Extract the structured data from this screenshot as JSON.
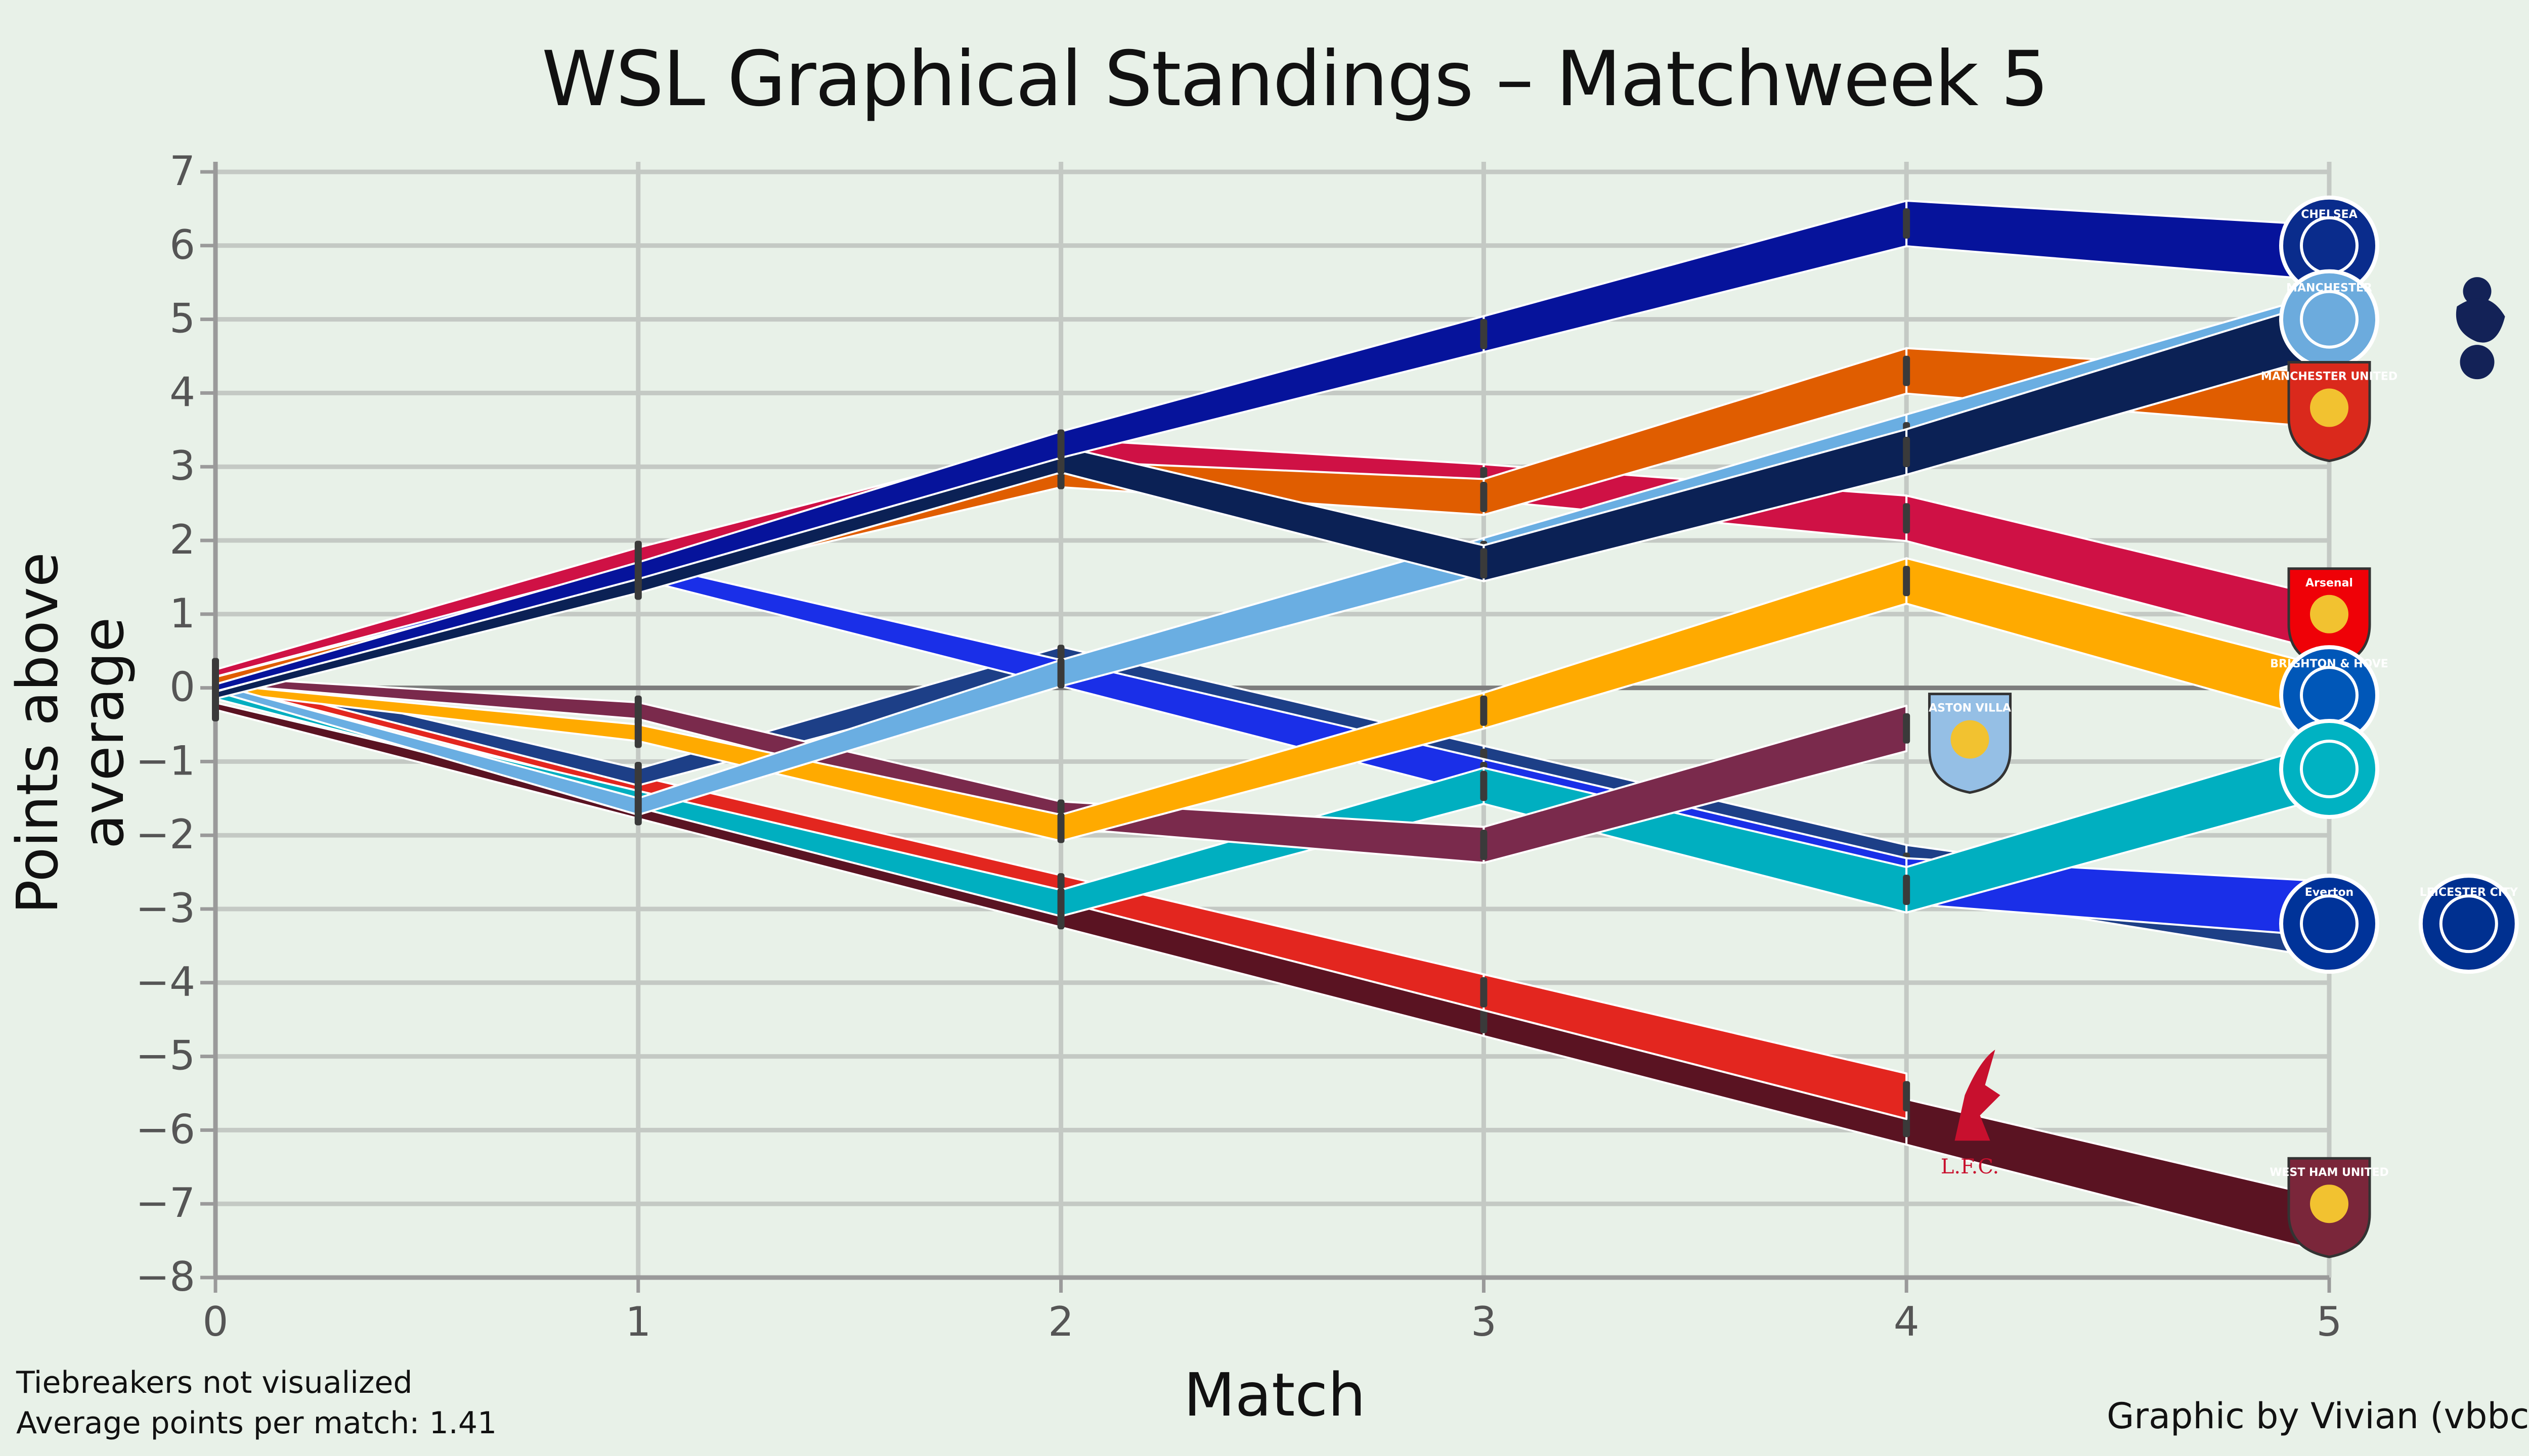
{
  "chart_data": {
    "type": "line",
    "title": "WSL Graphical Standings – Matchweek 5",
    "xlabel": "Match",
    "ylabel": "Points above average",
    "x": [
      0,
      1,
      2,
      3,
      4,
      5
    ],
    "xlim": [
      0,
      5
    ],
    "ylim": [
      -8,
      7
    ],
    "yticks": [
      7,
      6,
      5,
      4,
      3,
      2,
      1,
      0,
      -1,
      -2,
      -3,
      -4,
      -5,
      -6,
      -7,
      -8
    ],
    "ytick_labels": [
      "7",
      "6",
      "5",
      "4",
      "3",
      "2",
      "1",
      "0",
      "−1",
      "−2",
      "−3",
      "−4",
      "−5",
      "−6",
      "−7",
      "−8"
    ],
    "xticks": [
      0,
      1,
      2,
      3,
      4,
      5
    ],
    "grid": true,
    "series": [
      {
        "color": "#5a1322",
        "team_icon": "west-ham-crest-icon",
        "values": [
          -0.25,
          -1.66,
          -3.07,
          -4.48,
          -5.89,
          -7.3
        ]
      },
      {
        "color": "#e3261f",
        "team_icon": "liverpool-crest-icon",
        "values": [
          0.1,
          -1.31,
          -2.72,
          -4.13,
          -5.54,
          null
        ]
      },
      {
        "color": "#1d3f87",
        "team_icon": "leicester-crest-icon",
        "values": [
          0.2,
          -1.21,
          0.38,
          -1.03,
          -2.44,
          -3.3
        ]
      },
      {
        "color": "#1a2fe8",
        "team_icon": "everton-crest-icon",
        "values": [
          0.2,
          1.59,
          0.2,
          -1.21,
          -2.62,
          -3.0
        ]
      },
      {
        "color": "#00afc0",
        "team_icon": "london-city-crest-icon",
        "values": [
          -0.1,
          -1.51,
          -2.92,
          -1.33,
          -2.74,
          -1.1
        ]
      },
      {
        "color": "#7a2a4c",
        "team_icon": "aston-villa-crest-icon",
        "values": [
          0.1,
          -0.31,
          -1.72,
          -2.13,
          -0.55,
          null
        ]
      },
      {
        "color": "#ffaa00",
        "team_icon": "brighton-crest-icon",
        "values": [
          0.0,
          -0.61,
          -1.9,
          -0.31,
          1.45,
          -0.1
        ]
      },
      {
        "color": "#cf1145",
        "team_icon": "arsenal-crest-icon",
        "values": [
          0.2,
          1.79,
          3.2,
          2.79,
          2.3,
          0.85
        ]
      },
      {
        "color": "#e05d00",
        "team_icon": "manchester-united-crest-icon",
        "values": [
          0.1,
          1.49,
          2.9,
          2.59,
          4.3,
          3.9
        ]
      },
      {
        "color": "#6aaee2",
        "team_icon": "manchester-city-crest-icon",
        "values": [
          0.0,
          -1.61,
          0.2,
          1.79,
          3.4,
          5.0
        ]
      },
      {
        "color": "#0b2155",
        "team_icon": "tottenham-crest-icon",
        "values": [
          -0.1,
          1.4,
          3.1,
          1.69,
          3.2,
          4.9
        ]
      },
      {
        "color": "#06139b",
        "team_icon": "chelsea-crest-icon",
        "values": [
          0.0,
          1.59,
          3.3,
          4.8,
          6.3,
          5.9
        ]
      }
    ],
    "crests": [
      {
        "icon": "chelsea-crest-icon",
        "text": "CHELSEA",
        "color": "#0a2c8c",
        "x": 5,
        "y": 6.0
      },
      {
        "icon": "manchester-city-crest-icon",
        "text": "MANCHESTER",
        "color": "#6cabdd",
        "x": 5,
        "y": 5.0
      },
      {
        "icon": "tottenham-crest-icon",
        "text": "",
        "color": "#132257",
        "x": 5.35,
        "y": 4.9
      },
      {
        "icon": "manchester-united-crest-icon",
        "text": "MANCHESTER UNITED",
        "color": "#da291c",
        "x": 5,
        "y": 3.8
      },
      {
        "icon": "arsenal-crest-icon",
        "text": "Arsenal",
        "color": "#ef0107",
        "x": 5,
        "y": 1.0
      },
      {
        "icon": "brighton-crest-icon",
        "text": "BRIGHTON & HOVE",
        "color": "#0057b8",
        "x": 5,
        "y": -0.1
      },
      {
        "icon": "london-city-crest-icon",
        "text": "",
        "color": "#00b2c2",
        "x": 5,
        "y": -1.1
      },
      {
        "icon": "everton-crest-icon",
        "text": "Everton",
        "color": "#003399",
        "x": 5,
        "y": -3.2
      },
      {
        "icon": "leicester-crest-icon",
        "text": "LEICESTER CITY",
        "color": "#003090",
        "x": 5.33,
        "y": -3.2
      },
      {
        "icon": "west-ham-crest-icon",
        "text": "WEST HAM UNITED",
        "color": "#7a263a",
        "x": 5,
        "y": -7.0
      },
      {
        "icon": "aston-villa-crest-icon",
        "text": "ASTON VILLA",
        "color": "#95bfe5",
        "x": 4.15,
        "y": -0.7
      },
      {
        "icon": "liverpool-crest-icon",
        "text": "L.F.C.",
        "color": "#c8102e",
        "x": 4.15,
        "y": -5.8
      }
    ]
  },
  "notes": {
    "line1": "Tiebreakers not visualized",
    "line2": "Average points per match: 1.41"
  },
  "credit": "Graphic by Vivian (vbbcla)"
}
